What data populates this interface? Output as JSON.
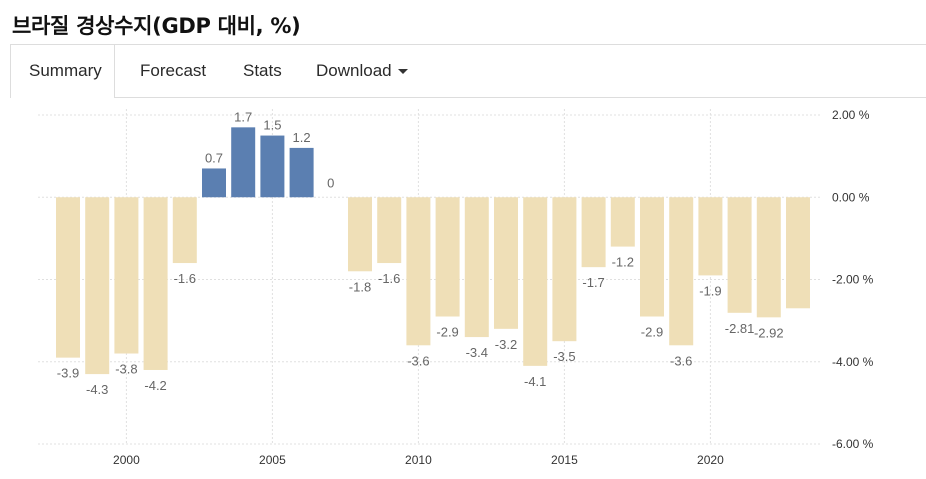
{
  "title": "브라질 경상수지(GDP 대비, %)",
  "tabs": [
    {
      "label": "Summary",
      "active": true
    },
    {
      "label": "Forecast",
      "active": false
    },
    {
      "label": "Stats",
      "active": false
    },
    {
      "label": "Download",
      "active": false
    }
  ],
  "colors": {
    "positive": "#5b7fb1",
    "negative": "#efdfb7",
    "grid": "#e0e0e0"
  },
  "chart_data": {
    "type": "bar",
    "categories": [
      "1998",
      "1999",
      "2000",
      "2001",
      "2002",
      "2003",
      "2004",
      "2005",
      "2006",
      "2007",
      "2008",
      "2009",
      "2010",
      "2011",
      "2012",
      "2013",
      "2014",
      "2015",
      "2016",
      "2017",
      "2018",
      "2019",
      "2020",
      "2021",
      "2022",
      "2023"
    ],
    "values": [
      -3.9,
      -4.3,
      -3.8,
      -4.2,
      -1.6,
      0.7,
      1.7,
      1.5,
      1.2,
      0,
      -1.8,
      -1.6,
      -3.6,
      -2.9,
      -3.4,
      -3.2,
      -4.1,
      -3.5,
      -1.7,
      -1.2,
      -2.9,
      -3.6,
      -1.9,
      -2.81,
      -2.92,
      -2.7
    ],
    "data_labels": [
      "-3.9",
      "-4.3",
      "-3.8",
      "-4.2",
      "-1.6",
      "0.7",
      "1.7",
      "1.5",
      "1.2",
      "0",
      "-1.8",
      "-1.6",
      "-3.6",
      "-2.9",
      "-3.4",
      "-3.2",
      "-4.1",
      "-3.5",
      "-1.7",
      "-1.2",
      "-2.9",
      "-3.6",
      "-1.9",
      "-2.81",
      "-2.92",
      ""
    ],
    "x_ticks": [
      "2000",
      "2005",
      "2010",
      "2015",
      "2020"
    ],
    "y_ticks": [
      "2.00 %",
      "0.00 %",
      "-2.00 %",
      "-4.00 %",
      "-6.00 %"
    ],
    "ylim": [
      -6,
      2
    ],
    "grid": true
  }
}
